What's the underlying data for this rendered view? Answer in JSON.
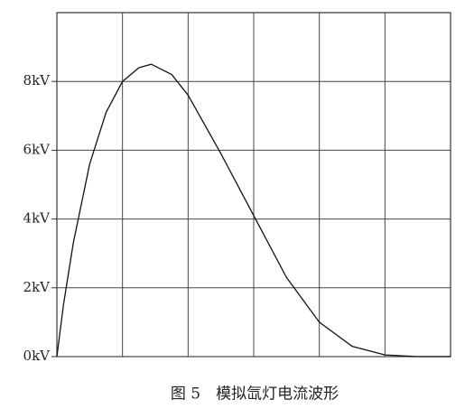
{
  "chart_data": {
    "type": "line",
    "caption": "图 5　模拟氙灯电流波形",
    "x": [
      0,
      0.1,
      0.25,
      0.5,
      0.75,
      1.0,
      1.25,
      1.44,
      1.75,
      2.0,
      2.5,
      3.0,
      3.5,
      4.0,
      4.5,
      5.0,
      5.5,
      6.0
    ],
    "series": [
      {
        "name": "current",
        "color": "#111111",
        "values": [
          0,
          1.5,
          3.3,
          5.6,
          7.1,
          8.0,
          8.4,
          8.5,
          8.2,
          7.6,
          5.9,
          4.1,
          2.3,
          1.0,
          0.3,
          0.05,
          0,
          0
        ]
      }
    ],
    "xlim": [
      0,
      6
    ],
    "ylim": [
      0,
      10
    ],
    "yticks": [
      {
        "value": 0,
        "label": "0kV"
      },
      {
        "value": 2,
        "label": "2kV"
      },
      {
        "value": 4,
        "label": "4kV"
      },
      {
        "value": 6,
        "label": "6kV"
      },
      {
        "value": 8,
        "label": "8kV"
      }
    ],
    "grid": true
  }
}
